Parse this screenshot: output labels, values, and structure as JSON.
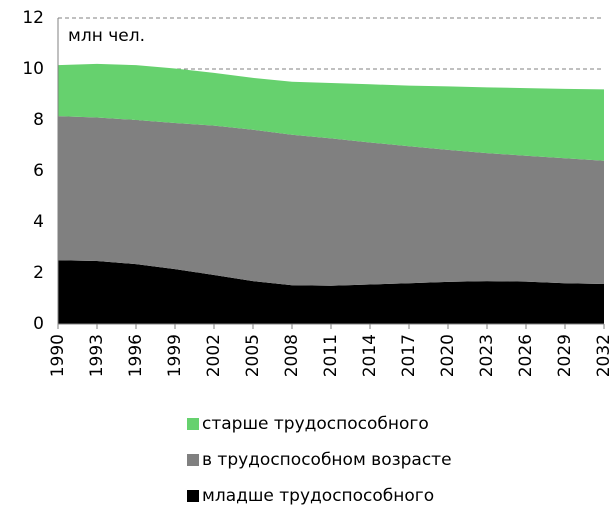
{
  "chart_data": {
    "type": "stacked_area",
    "annotation": "млн чел.",
    "x": [
      1990,
      1993,
      1996,
      1999,
      2002,
      2005,
      2008,
      2011,
      2014,
      2017,
      2020,
      2023,
      2026,
      2029,
      2032
    ],
    "series": [
      {
        "name": "младше трудоспособного",
        "color": "#000000",
        "values": [
          2.5,
          2.47,
          2.35,
          2.15,
          1.92,
          1.68,
          1.52,
          1.5,
          1.55,
          1.6,
          1.65,
          1.68,
          1.66,
          1.6,
          1.57
        ]
      },
      {
        "name": "в трудоспособном возрасте",
        "color": "#808080",
        "values": [
          5.65,
          5.63,
          5.65,
          5.73,
          5.86,
          5.94,
          5.9,
          5.78,
          5.57,
          5.37,
          5.18,
          5.02,
          4.94,
          4.9,
          4.83
        ]
      },
      {
        "name": "старше трудоспособного",
        "color": "#66d16e",
        "values": [
          2.0,
          2.1,
          2.15,
          2.14,
          2.07,
          2.03,
          2.08,
          2.17,
          2.28,
          2.38,
          2.49,
          2.58,
          2.65,
          2.72,
          2.8
        ]
      }
    ],
    "xlim": [
      1990,
      2032
    ],
    "xticks": [
      1990,
      1993,
      1996,
      1999,
      2002,
      2005,
      2008,
      2011,
      2014,
      2017,
      2020,
      2023,
      2026,
      2029,
      2032
    ],
    "ylim": [
      0,
      12
    ],
    "yticks": [
      0,
      2,
      4,
      6,
      8,
      10,
      12
    ],
    "grid": true
  }
}
